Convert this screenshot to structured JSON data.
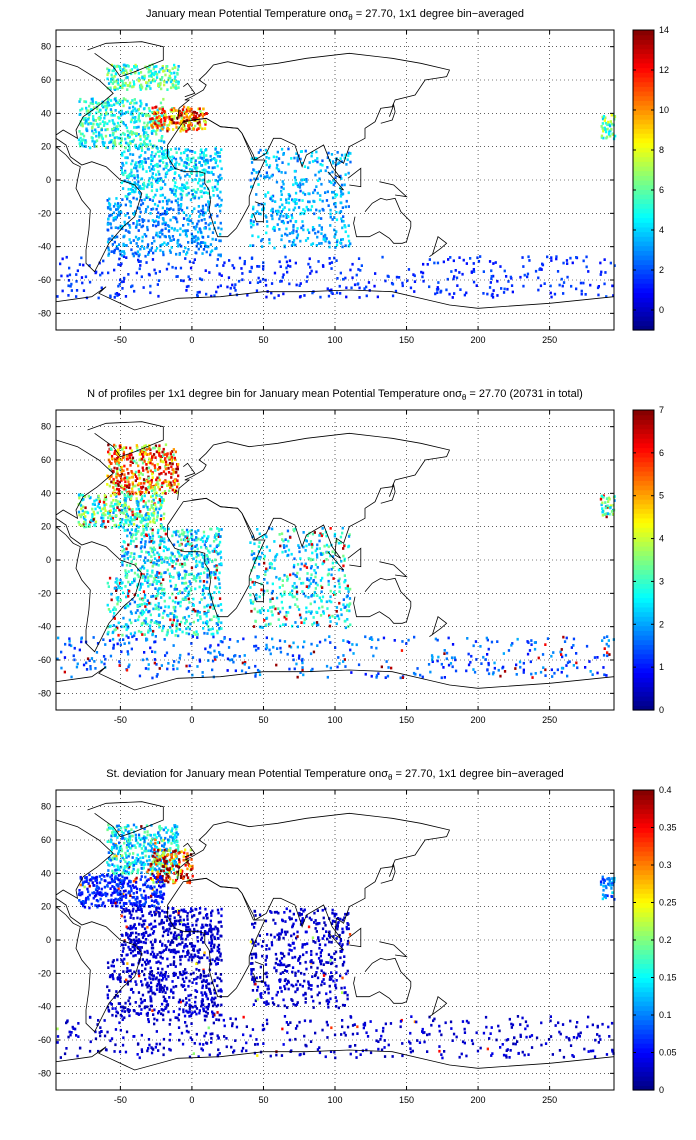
{
  "chart_data": [
    {
      "type": "heatmap",
      "title_pre": "January mean Potential Temperature on",
      "title_sigma": "σ",
      "title_sub": "θ",
      "title_post": " = 27.70, 1x1 degree bin−averaged",
      "xlim": [
        -95,
        295
      ],
      "ylim": [
        -90,
        90
      ],
      "xticks": [
        -50,
        0,
        50,
        100,
        150,
        200,
        250
      ],
      "yticks": [
        -80,
        -60,
        -40,
        -20,
        0,
        20,
        40,
        60,
        80
      ],
      "grid": true,
      "colorbar": {
        "min": -1,
        "max": 14,
        "ticks": [
          0,
          2,
          4,
          6,
          8,
          10,
          12,
          14
        ],
        "colormap": "jet"
      },
      "regions": [
        {
          "lon": [
            -60,
            -10
          ],
          "lat": [
            55,
            70
          ],
          "value": 5.5
        },
        {
          "lon": [
            -80,
            -20
          ],
          "lat": [
            20,
            50
          ],
          "value": 5.0
        },
        {
          "lon": [
            -30,
            10
          ],
          "lat": [
            30,
            45
          ],
          "value": 9.5
        },
        {
          "lon": [
            -15,
            5
          ],
          "lat": [
            33,
            43
          ],
          "value": 12.5
        },
        {
          "lon": [
            -50,
            20
          ],
          "lat": [
            -10,
            20
          ],
          "value": 4.0
        },
        {
          "lon": [
            40,
            110
          ],
          "lat": [
            -40,
            20
          ],
          "value": 3.5
        },
        {
          "lon": [
            -60,
            20
          ],
          "lat": [
            -45,
            -10
          ],
          "value": 3.0
        },
        {
          "lon": [
            -95,
            295
          ],
          "lat": [
            -70,
            -45
          ],
          "value": 1.5
        },
        {
          "lon": [
            285,
            295
          ],
          "lat": [
            25,
            40
          ],
          "value": 6.0
        }
      ]
    },
    {
      "type": "heatmap",
      "title_pre": "N of profiles per 1x1 degree bin for January mean Potential Temperature on",
      "title_sigma": "σ",
      "title_sub": "θ",
      "title_post": " = 27.70 (20731 in total)",
      "xlim": [
        -95,
        295
      ],
      "ylim": [
        -90,
        90
      ],
      "xticks": [
        -50,
        0,
        50,
        100,
        150,
        200,
        250
      ],
      "yticks": [
        -80,
        -60,
        -40,
        -20,
        0,
        20,
        40,
        60,
        80
      ],
      "grid": true,
      "colorbar": {
        "min": 0,
        "max": 7,
        "ticks": [
          0,
          1,
          2,
          3,
          4,
          5,
          6,
          7
        ],
        "colormap": "jet"
      },
      "regions": [
        {
          "lon": [
            -60,
            -10
          ],
          "lat": [
            40,
            70
          ],
          "value": 5.0
        },
        {
          "lon": [
            -80,
            -20
          ],
          "lat": [
            20,
            40
          ],
          "value": 3.0
        },
        {
          "lon": [
            -50,
            20
          ],
          "lat": [
            -10,
            20
          ],
          "value": 2.5
        },
        {
          "lon": [
            40,
            110
          ],
          "lat": [
            -40,
            20
          ],
          "value": 2.5
        },
        {
          "lon": [
            -60,
            20
          ],
          "lat": [
            -45,
            -10
          ],
          "value": 2.5
        },
        {
          "lon": [
            -95,
            295
          ],
          "lat": [
            -70,
            -45
          ],
          "value": 1.5
        },
        {
          "lon": [
            285,
            295
          ],
          "lat": [
            25,
            40
          ],
          "value": 3.0
        }
      ]
    },
    {
      "type": "heatmap",
      "title_pre": "St. deviation for January mean Potential Temperature on",
      "title_sigma": "σ",
      "title_sub": "θ",
      "title_post": " = 27.70, 1x1 degree bin−averaged",
      "xlim": [
        -95,
        295
      ],
      "ylim": [
        -90,
        90
      ],
      "xticks": [
        -50,
        0,
        50,
        100,
        150,
        200,
        250
      ],
      "yticks": [
        -80,
        -60,
        -40,
        -20,
        0,
        20,
        40,
        60,
        80
      ],
      "grid": true,
      "colorbar": {
        "min": 0,
        "max": 0.4,
        "ticks": [
          0,
          0.05,
          0.1,
          0.15,
          0.2,
          0.25,
          0.3,
          0.35,
          0.4
        ],
        "colormap": "jet"
      },
      "regions": [
        {
          "lon": [
            -60,
            -10
          ],
          "lat": [
            40,
            70
          ],
          "value": 0.14
        },
        {
          "lon": [
            -30,
            0
          ],
          "lat": [
            35,
            55
          ],
          "value": 0.32
        },
        {
          "lon": [
            -80,
            -20
          ],
          "lat": [
            20,
            40
          ],
          "value": 0.06
        },
        {
          "lon": [
            -50,
            20
          ],
          "lat": [
            -10,
            20
          ],
          "value": 0.03
        },
        {
          "lon": [
            40,
            110
          ],
          "lat": [
            -40,
            20
          ],
          "value": 0.03
        },
        {
          "lon": [
            -60,
            20
          ],
          "lat": [
            -45,
            -10
          ],
          "value": 0.03
        },
        {
          "lon": [
            -95,
            295
          ],
          "lat": [
            -70,
            -45
          ],
          "value": 0.03
        },
        {
          "lon": [
            285,
            295
          ],
          "lat": [
            25,
            40
          ],
          "value": 0.1
        }
      ]
    }
  ]
}
